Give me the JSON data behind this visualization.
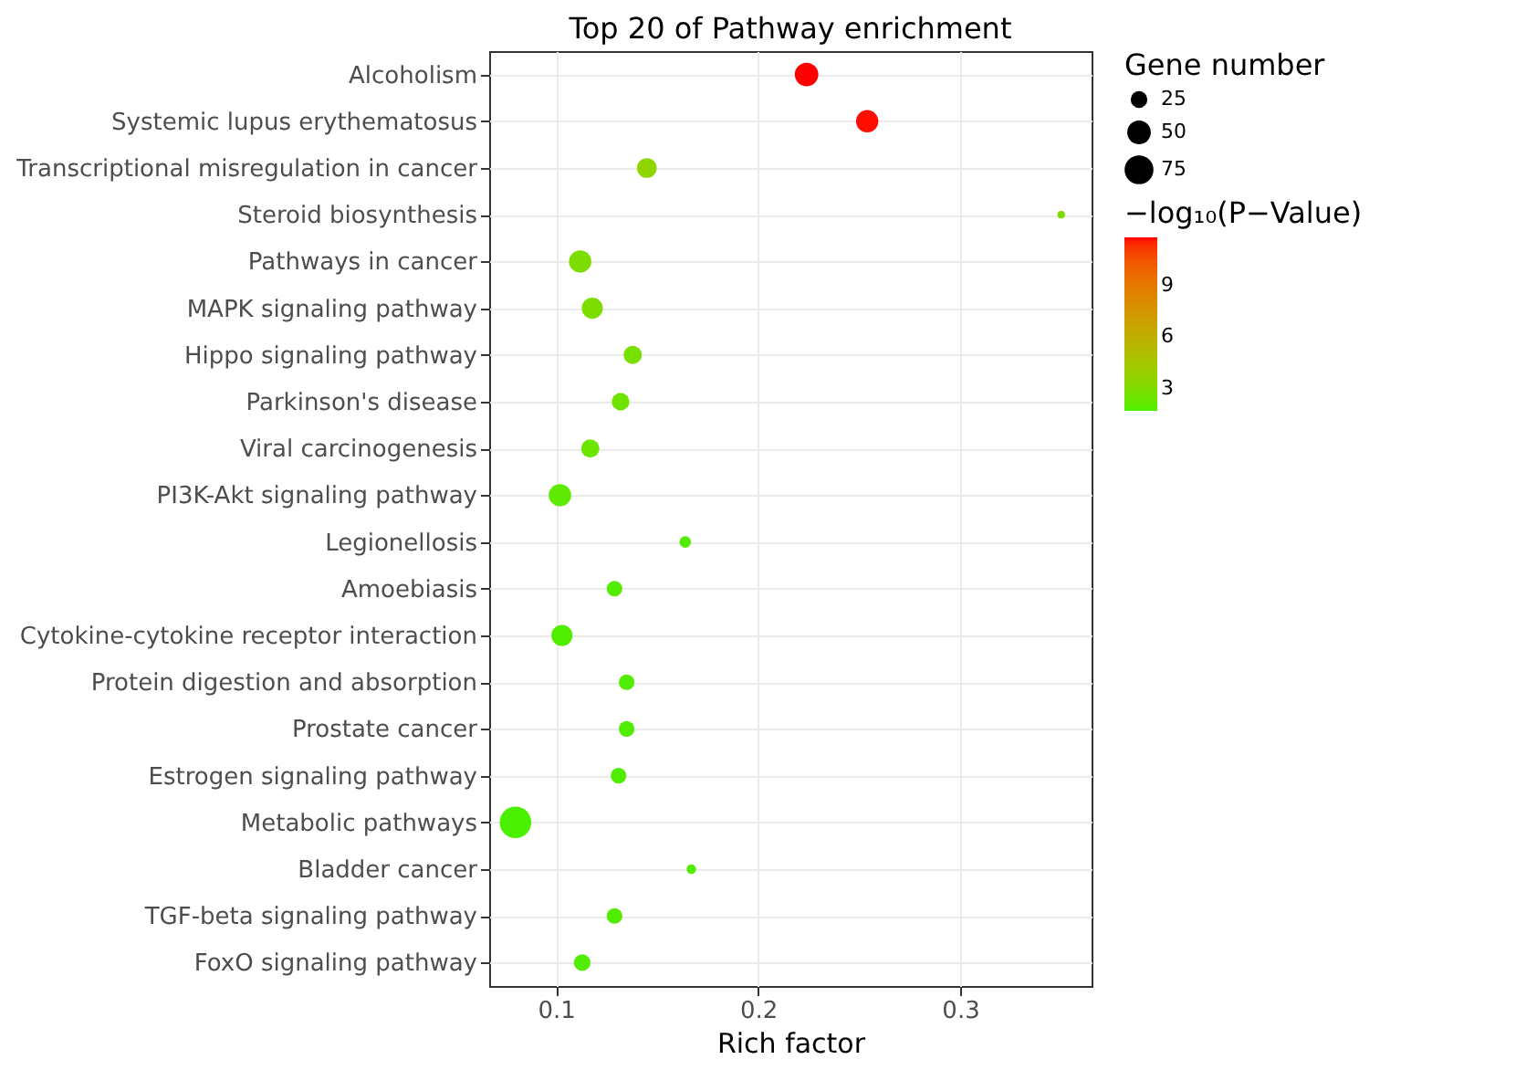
{
  "chart_data": {
    "type": "bubble",
    "orientation": "horizontal",
    "title": "Top 20 of Pathway enrichment",
    "xlabel": "Rich factor",
    "legend_title": "Gene number",
    "clabel": "−log₁₀(P−Value)",
    "categories": [
      "Alcoholism",
      "Systemic lupus erythematosus",
      "Transcriptional misregulation in cancer",
      "Steroid biosynthesis",
      "Pathways in cancer",
      "MAPK signaling pathway",
      "Hippo signaling pathway",
      "Parkinson's disease",
      "Viral carcinogenesis",
      "PI3K-Akt signaling pathway",
      "Legionellosis",
      "Amoebiasis",
      "Cytokine-cytokine receptor interaction",
      "Protein digestion and absorption",
      "Prostate cancer",
      "Estrogen signaling pathway",
      "Metabolic pathways",
      "Bladder cancer",
      "TGF-beta signaling pathway",
      "FoxO signaling pathway"
    ],
    "values": [
      0.224,
      0.254,
      0.145,
      0.35,
      0.112,
      0.118,
      0.138,
      0.132,
      0.117,
      0.102,
      0.164,
      0.129,
      0.103,
      0.135,
      0.135,
      0.131,
      0.08,
      0.167,
      0.129,
      0.113
    ],
    "sizes": [
      50,
      45,
      35,
      5,
      45,
      40,
      30,
      28,
      30,
      45,
      12,
      22,
      40,
      22,
      22,
      22,
      90,
      8,
      22,
      25
    ],
    "cvalues": [
      11.8,
      11.5,
      3.5,
      2.9,
      2.9,
      2.9,
      2.8,
      2.6,
      2.5,
      2.3,
      2,
      2,
      2,
      2,
      2,
      2,
      1.9,
      2,
      2,
      2
    ],
    "colors": [
      "#ff0000",
      "#ff0d00",
      "#8fd600",
      "#7ddd00",
      "#7ddd00",
      "#7ddd00",
      "#78e000",
      "#6ee400",
      "#6ae600",
      "#5ee900",
      "#50ed00",
      "#50ed00",
      "#50ed00",
      "#50ed00",
      "#50ed00",
      "#50ed00",
      "#4bef00",
      "#50ed00",
      "#50ed00",
      "#50ed00"
    ],
    "size_legend": [
      25,
      50,
      75
    ],
    "clim": [
      1.7,
      11.8
    ],
    "cticks": [
      3,
      6,
      9
    ],
    "xlim": [
      0.067,
      0.365
    ],
    "xticks": [
      0.1,
      0.2,
      0.3
    ],
    "grid": true
  }
}
